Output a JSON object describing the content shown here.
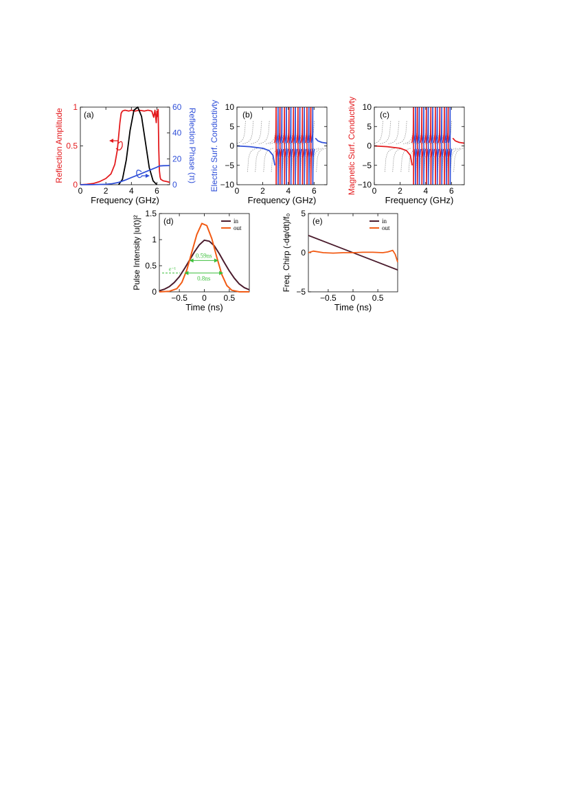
{
  "colors": {
    "red": "#e3191c",
    "blue": "#2f4fd8",
    "black": "#000000",
    "gray": "#8c8c8c",
    "in": "#4a1b2c",
    "out": "#f25a13",
    "green": "#3bbf3b"
  },
  "chart_data": [
    {
      "id": "a",
      "type": "line",
      "panel_label": "(a)",
      "xlabel": "Frequency (GHz)",
      "ylabel_left": "Reflection Amplitude",
      "ylabel_right": "Reflection Phase (π)",
      "xlim": [
        0,
        7
      ],
      "ylim_left": [
        0,
        1
      ],
      "ylim_right": [
        0,
        60
      ],
      "xticks": [
        "0",
        "2",
        "4",
        "6"
      ],
      "yticks_left": [
        "0",
        "0.5",
        "1"
      ],
      "yticks_right": [
        "0",
        "20",
        "40",
        "60"
      ],
      "series": [
        {
          "axis": "left",
          "color": "red",
          "x": [
            0,
            0.5,
            1,
            1.5,
            2,
            2.4,
            2.7,
            2.9,
            3.0,
            3.1,
            3.2,
            3.3,
            3.5,
            3.8,
            4.0,
            4.3,
            4.6,
            5.0,
            5.3,
            5.6,
            5.75,
            5.85,
            5.95,
            6.0,
            6.05,
            6.1,
            6.15,
            6.2,
            6.25,
            6.3,
            6.5,
            6.8,
            7.0
          ],
          "y": [
            0.0,
            0.005,
            0.015,
            0.04,
            0.08,
            0.14,
            0.26,
            0.45,
            0.62,
            0.8,
            0.92,
            0.95,
            0.96,
            0.95,
            0.96,
            0.95,
            0.96,
            0.95,
            0.96,
            0.95,
            0.87,
            0.96,
            0.8,
            0.95,
            0.88,
            0.97,
            0.45,
            0.18,
            0.1,
            0.07,
            0.05,
            0.04,
            0.03
          ]
        },
        {
          "axis": "left",
          "color": "black",
          "x": [
            3.0,
            3.3,
            3.6,
            3.9,
            4.2,
            4.5,
            4.8,
            5.1,
            5.4,
            5.7,
            6.0
          ],
          "y": [
            0.0,
            0.07,
            0.32,
            0.7,
            0.96,
            1.0,
            0.88,
            0.55,
            0.22,
            0.05,
            0.0
          ]
        },
        {
          "axis": "right",
          "color": "blue",
          "x": [
            0,
            1,
            2,
            2.5,
            3.0,
            3.5,
            4.0,
            4.5,
            5.0,
            5.5,
            6.0,
            6.2,
            6.5,
            7.0
          ],
          "y": [
            0.0,
            0.05,
            0.3,
            0.8,
            1.8,
            3.5,
            5.5,
            7.5,
            9.5,
            11.5,
            13.5,
            14.5,
            14.7,
            14.8
          ]
        }
      ]
    },
    {
      "id": "b",
      "type": "line",
      "panel_label": "(b)",
      "xlabel": "Frequency (GHz)",
      "ylabel": "Electric Surf. Conductivty",
      "xlim": [
        0,
        7
      ],
      "ylim": [
        -10,
        10
      ],
      "xticks": [
        "0",
        "2",
        "4",
        "6"
      ],
      "yticks": [
        "−10",
        "−5",
        "0",
        "5",
        "10"
      ],
      "smooth_color": "blue",
      "smooth_curve": {
        "x": [
          0,
          1,
          2,
          2.5,
          2.8,
          2.95
        ],
        "y": [
          0.0,
          -0.2,
          -0.6,
          -1.2,
          -2.4,
          -5.0
        ]
      },
      "smooth_tail": {
        "x": [
          6.1,
          6.3,
          6.6,
          7.0
        ],
        "y": [
          2.0,
          1.3,
          0.9,
          0.7
        ]
      },
      "red_poles": [
        3.05,
        3.35,
        3.7,
        4.05,
        4.4,
        4.75,
        5.1,
        5.45,
        5.75
      ],
      "blue_poles": [
        3.2,
        3.5,
        3.85,
        4.2,
        4.55,
        4.9,
        5.25,
        5.6,
        5.9
      ],
      "gray_poles": [
        0.75,
        1.35,
        2.0,
        2.6,
        3.15,
        3.45,
        3.8,
        4.15,
        4.5,
        4.85,
        5.2,
        5.55,
        5.85,
        6.1
      ]
    },
    {
      "id": "c",
      "type": "line",
      "panel_label": "(c)",
      "xlabel": "Frequency (GHz)",
      "ylabel": "Magnetic Surf. Conductivty",
      "xlim": [
        0,
        7
      ],
      "ylim": [
        -10,
        10
      ],
      "xticks": [
        "0",
        "2",
        "4",
        "6"
      ],
      "yticks": [
        "−10",
        "−5",
        "0",
        "5",
        "10"
      ],
      "smooth_color": "red",
      "smooth_curve": {
        "x": [
          0,
          1,
          2,
          2.5,
          2.8,
          2.95
        ],
        "y": [
          0.0,
          -0.2,
          -0.6,
          -1.2,
          -2.4,
          -5.0
        ]
      },
      "smooth_tail": {
        "x": [
          6.1,
          6.3,
          6.6,
          7.0
        ],
        "y": [
          2.0,
          1.3,
          0.9,
          0.7
        ]
      },
      "red_poles": [
        3.05,
        3.35,
        3.7,
        4.05,
        4.4,
        4.75,
        5.1,
        5.45,
        5.75
      ],
      "blue_poles": [
        3.2,
        3.5,
        3.85,
        4.2,
        4.55,
        4.9,
        5.25,
        5.6,
        5.9
      ],
      "gray_poles": [
        0.75,
        1.35,
        2.0,
        2.6,
        3.15,
        3.45,
        3.8,
        4.15,
        4.5,
        4.85,
        5.2,
        5.55,
        5.85,
        6.1
      ]
    },
    {
      "id": "d",
      "type": "line",
      "panel_label": "(d)",
      "xlabel": "Time (ns)",
      "ylabel": "Pulse Intensity |u(t)|²",
      "xlim": [
        -0.9,
        0.9
      ],
      "ylim": [
        0,
        1.5
      ],
      "xticks": [
        "−0.5",
        "0",
        "0.5"
      ],
      "yticks": [
        "0",
        "0.5",
        "1",
        "1.5"
      ],
      "legend": [
        "in",
        "out"
      ],
      "series": [
        {
          "name": "in",
          "color": "in",
          "x": [
            -0.9,
            -0.8,
            -0.7,
            -0.6,
            -0.5,
            -0.4,
            -0.3,
            -0.2,
            -0.1,
            0,
            0.1,
            0.2,
            0.3,
            0.4,
            0.5,
            0.6,
            0.7,
            0.8,
            0.9
          ],
          "y": [
            0.02,
            0.05,
            0.1,
            0.18,
            0.29,
            0.44,
            0.6,
            0.76,
            0.9,
            0.99,
            0.97,
            0.88,
            0.73,
            0.56,
            0.4,
            0.26,
            0.15,
            0.08,
            0.04
          ]
        },
        {
          "name": "out",
          "color": "out",
          "x": [
            -0.9,
            -0.7,
            -0.55,
            -0.45,
            -0.35,
            -0.25,
            -0.15,
            -0.05,
            0.05,
            0.15,
            0.25,
            0.35,
            0.45,
            0.55,
            0.7,
            0.9
          ],
          "y": [
            0.0,
            0.01,
            0.06,
            0.18,
            0.42,
            0.76,
            1.1,
            1.31,
            1.27,
            1.02,
            0.66,
            0.33,
            0.12,
            0.03,
            0.0,
            0.0
          ]
        }
      ],
      "annotations": {
        "width_out": "0.59ns",
        "width_in": "0.8ns",
        "level_label": "e⁻¹"
      }
    },
    {
      "id": "e",
      "type": "line",
      "panel_label": "(e)",
      "xlabel": "Time (ns)",
      "ylabel": "Freq. Chirp (-dφ/dt)/f₀",
      "xlim": [
        -0.9,
        0.9
      ],
      "ylim": [
        -5,
        5
      ],
      "xticks": [
        "−0.5",
        "0",
        "0.5"
      ],
      "yticks": [
        "−5",
        "0",
        "5"
      ],
      "legend": [
        "in",
        "out"
      ],
      "series": [
        {
          "name": "in",
          "color": "in",
          "x": [
            -0.9,
            0.9
          ],
          "y": [
            2.2,
            -2.2
          ]
        },
        {
          "name": "out",
          "color": "out",
          "x": [
            -0.9,
            -0.8,
            -0.6,
            -0.4,
            -0.2,
            0,
            0.2,
            0.4,
            0.6,
            0.7,
            0.8,
            0.85,
            0.9
          ],
          "y": [
            0.0,
            0.2,
            0.0,
            -0.05,
            0.0,
            0.0,
            0.05,
            0.05,
            0.0,
            0.1,
            0.3,
            -0.2,
            -1.2
          ]
        }
      ]
    }
  ]
}
